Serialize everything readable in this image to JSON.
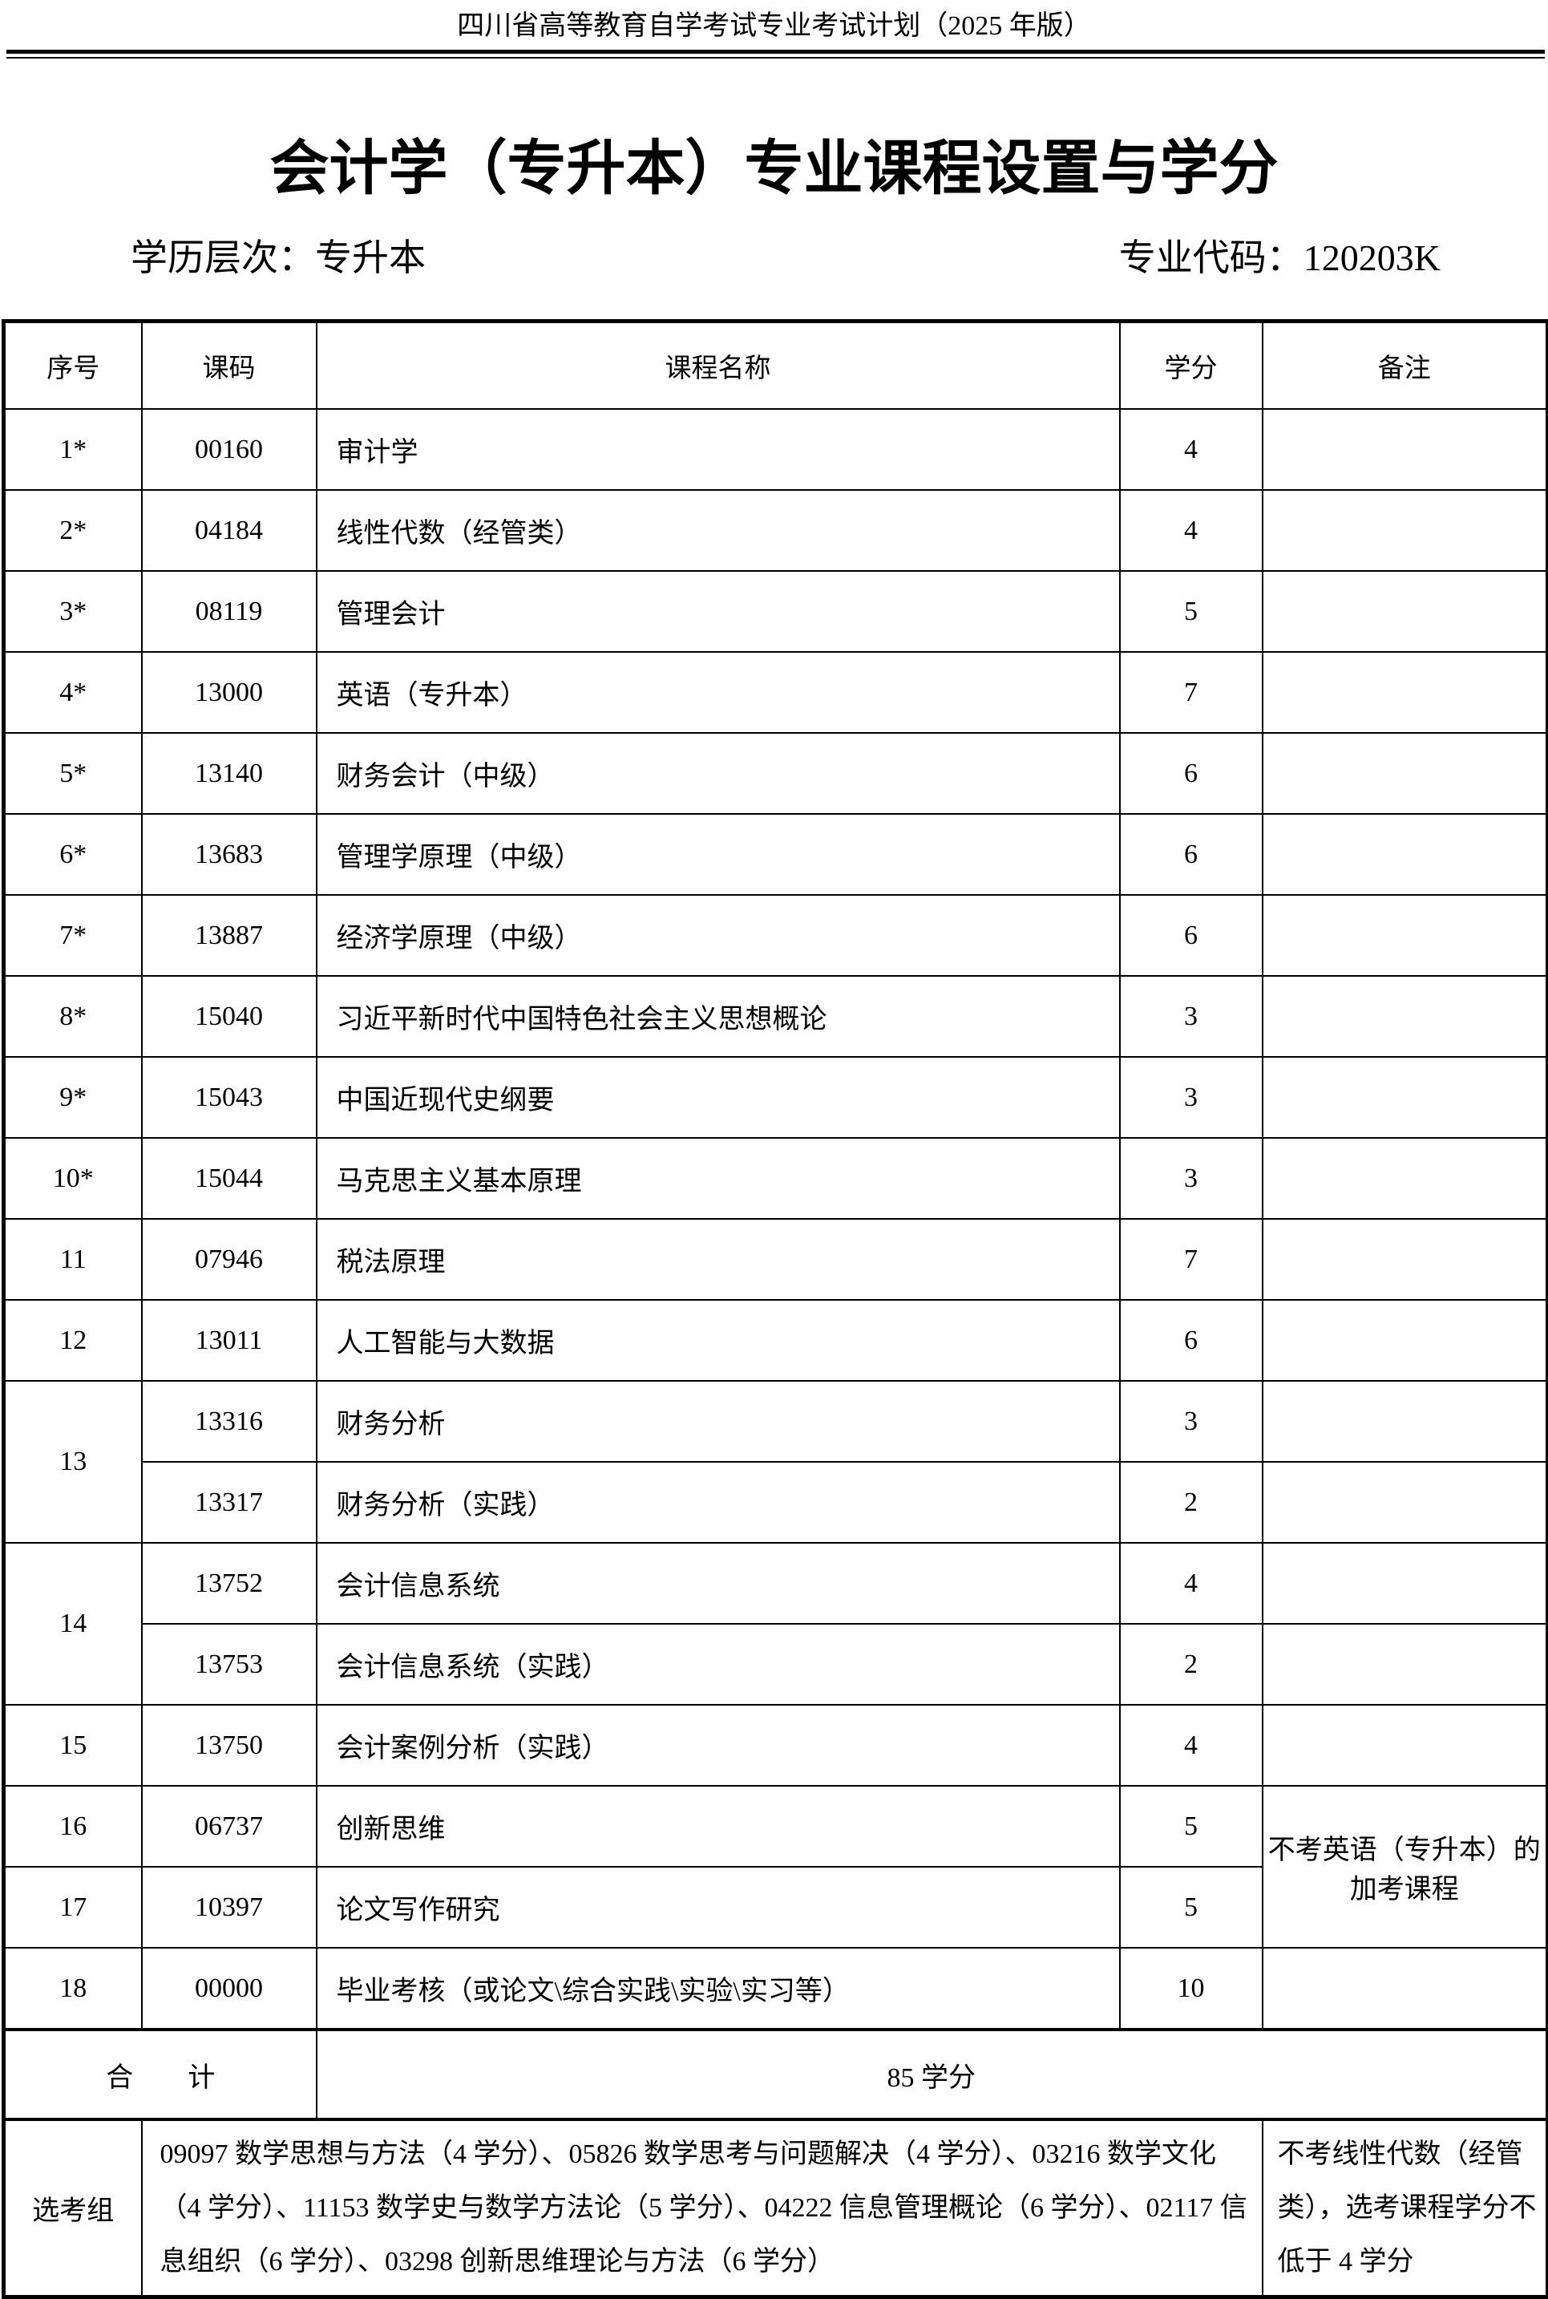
{
  "running_header": "四川省高等教育自学考试专业考试计划（2025 年版）",
  "title": "会计学（专升本）专业课程设置与学分",
  "level": "学历层次：专升本",
  "major_code": "专业代码：120203K",
  "table": {
    "headers": [
      "序号",
      "课码",
      "课程名称",
      "学分",
      "备注"
    ],
    "rows": [
      {
        "seq": "1*",
        "code": "00160",
        "name": "审计学",
        "credits": "4",
        "note": ""
      },
      {
        "seq": "2*",
        "code": "04184",
        "name": "线性代数（经管类）",
        "credits": "4",
        "note": ""
      },
      {
        "seq": "3*",
        "code": "08119",
        "name": "管理会计",
        "credits": "5",
        "note": ""
      },
      {
        "seq": "4*",
        "code": "13000",
        "name": "英语（专升本）",
        "credits": "7",
        "note": ""
      },
      {
        "seq": "5*",
        "code": "13140",
        "name": "财务会计（中级）",
        "credits": "6",
        "note": ""
      },
      {
        "seq": "6*",
        "code": "13683",
        "name": "管理学原理（中级）",
        "credits": "6",
        "note": ""
      },
      {
        "seq": "7*",
        "code": "13887",
        "name": "经济学原理（中级）",
        "credits": "6",
        "note": ""
      },
      {
        "seq": "8*",
        "code": "15040",
        "name": "习近平新时代中国特色社会主义思想概论",
        "credits": "3",
        "note": ""
      },
      {
        "seq": "9*",
        "code": "15043",
        "name": "中国近现代史纲要",
        "credits": "3",
        "note": ""
      },
      {
        "seq": "10*",
        "code": "15044",
        "name": "马克思主义基本原理",
        "credits": "3",
        "note": ""
      },
      {
        "seq": "11",
        "code": "07946",
        "name": "税法原理",
        "credits": "7",
        "note": ""
      },
      {
        "seq": "12",
        "code": "13011",
        "name": "人工智能与大数据",
        "credits": "6",
        "note": ""
      },
      {
        "seq": "13",
        "code": "13316",
        "name": "财务分析",
        "credits": "3",
        "note": ""
      },
      {
        "seq": "13",
        "code": "13317",
        "name": "财务分析（实践）",
        "credits": "2",
        "note": ""
      },
      {
        "seq": "14",
        "code": "13752",
        "name": "会计信息系统",
        "credits": "4",
        "note": ""
      },
      {
        "seq": "14",
        "code": "13753",
        "name": "会计信息系统（实践）",
        "credits": "2",
        "note": ""
      },
      {
        "seq": "15",
        "code": "13750",
        "name": "会计案例分析（实践）",
        "credits": "4",
        "note": ""
      },
      {
        "seq": "16",
        "code": "06737",
        "name": "创新思维",
        "credits": "5",
        "note": "不考英语（专升本）的加考课程"
      },
      {
        "seq": "17",
        "code": "10397",
        "name": "论文写作研究",
        "credits": "5",
        "note": "不考英语（专升本）的加考课程"
      },
      {
        "seq": "18",
        "code": "00000",
        "name": "毕业考核（或论文\\综合实践\\实验\\实习等）",
        "credits": "10",
        "note": ""
      }
    ],
    "total_label": "合　　计",
    "total_value": "85 学分",
    "elective_label": "选考组",
    "elective_courses": "09097 数学思想与方法（4 学分）、05826 数学思考与问题解决（4 学分）、03216 数学文化（4 学分）、11153 数学史与数学方法论（5 学分）、04222 信息管理概论（6 学分）、02117 信息组织（6 学分）、03298 创新思维理论与方法（6 学分）",
    "elective_note": "不考线性代数（经管类），选考课程学分不低于 4 学分"
  }
}
